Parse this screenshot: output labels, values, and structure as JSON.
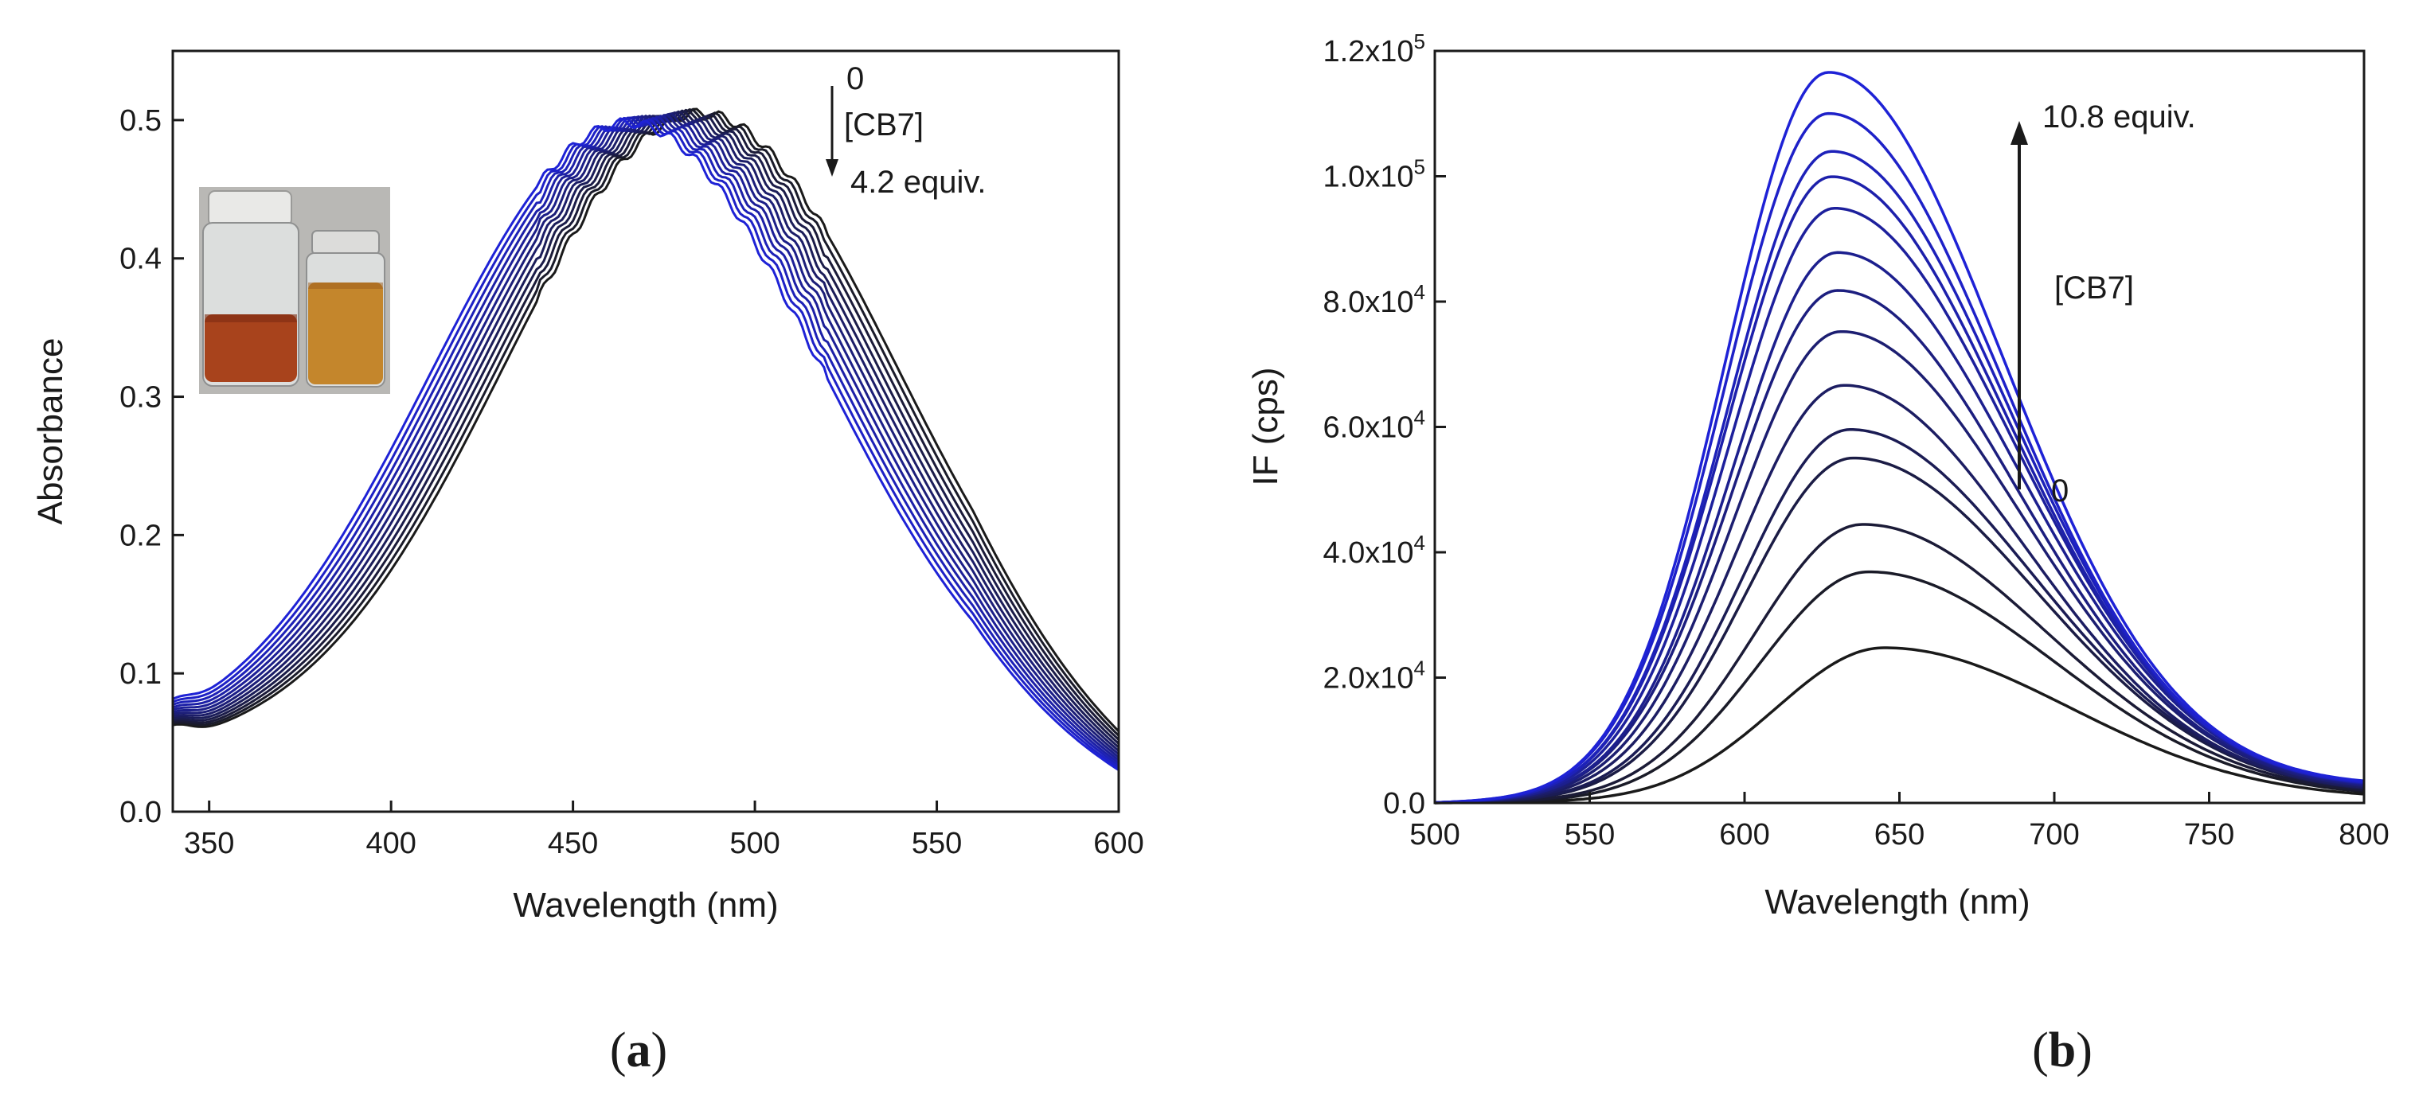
{
  "colors": {
    "start_series": "#1a1a1a",
    "end_series": "#1e22d6",
    "axis": "#1a1a1a",
    "background": "#ffffff"
  },
  "panel_labels": {
    "a": {
      "open": "(",
      "letter": "a",
      "close": ")"
    },
    "b": {
      "open": "(",
      "letter": "b",
      "close": ")"
    }
  },
  "inset_photo": {
    "icon": "vials-photo-icon",
    "colors": {
      "backdrop": "#b9b8b5",
      "left_liquid": "#a8431c",
      "right_liquid": "#c4862c",
      "glass": "#dcdedd"
    }
  },
  "chart_data": [
    {
      "id": "a",
      "type": "line",
      "title": "",
      "xlabel": "Wavelength (nm)",
      "ylabel": "Absorbance",
      "xlim": [
        340,
        600
      ],
      "ylim": [
        0.0,
        0.55
      ],
      "xticks": [
        350,
        400,
        450,
        500,
        550,
        600
      ],
      "yticks": [
        0.0,
        0.1,
        0.2,
        0.3,
        0.4,
        0.5
      ],
      "xtick_labels": [
        "350",
        "400",
        "450",
        "500",
        "550",
        "600"
      ],
      "ytick_labels": [
        "0.0",
        "0.1",
        "0.2",
        "0.3",
        "0.4",
        "0.5"
      ],
      "grid": false,
      "series_count": 13,
      "first_series": {
        "peak_x": 485,
        "peak_y": 0.505,
        "color": "black"
      },
      "last_series": {
        "peak_x": 465,
        "peak_y": 0.498,
        "color": "blue"
      },
      "baseline": {
        "at_340": 0.05,
        "min_x": 350,
        "min_y": 0.04,
        "at_600": 0.01
      },
      "annotations": {
        "start": "0",
        "reagent": "[CB7]",
        "end": "4.2 equiv.",
        "arrow_direction": "down"
      }
    },
    {
      "id": "b",
      "type": "line",
      "title": "",
      "xlabel": "Wavelength (nm)",
      "ylabel": "IF (cps)",
      "xlim": [
        500,
        800
      ],
      "ylim": [
        0,
        120000
      ],
      "xticks": [
        500,
        550,
        600,
        650,
        700,
        750,
        800
      ],
      "yticks": [
        0,
        20000,
        40000,
        60000,
        80000,
        100000,
        120000
      ],
      "xtick_labels": [
        "500",
        "550",
        "600",
        "650",
        "700",
        "750",
        "800"
      ],
      "ytick_labels": [
        {
          "mant": "0.0",
          "exp": ""
        },
        {
          "mant": "2.0x10",
          "exp": "4"
        },
        {
          "mant": "4.0x10",
          "exp": "4"
        },
        {
          "mant": "6.0x10",
          "exp": "4"
        },
        {
          "mant": "8.0x10",
          "exp": "4"
        },
        {
          "mant": "1.0x10",
          "exp": "5"
        },
        {
          "mant": "1.2x10",
          "exp": "5"
        }
      ],
      "grid": false,
      "series": [
        {
          "peak_x": 645,
          "peak_y": 24500
        },
        {
          "peak_x": 640,
          "peak_y": 36500
        },
        {
          "peak_x": 638,
          "peak_y": 44000
        },
        {
          "peak_x": 635,
          "peak_y": 54500
        },
        {
          "peak_x": 634,
          "peak_y": 59000
        },
        {
          "peak_x": 632,
          "peak_y": 66000
        },
        {
          "peak_x": 631,
          "peak_y": 74500
        },
        {
          "peak_x": 630,
          "peak_y": 81000
        },
        {
          "peak_x": 630,
          "peak_y": 87000
        },
        {
          "peak_x": 629,
          "peak_y": 94000
        },
        {
          "peak_x": 628,
          "peak_y": 99000
        },
        {
          "peak_x": 628,
          "peak_y": 103000
        },
        {
          "peak_x": 627,
          "peak_y": 109000
        },
        {
          "peak_x": 627,
          "peak_y": 115500
        }
      ],
      "annotations": {
        "start": "0",
        "reagent": "[CB7]",
        "end": "10.8 equiv.",
        "arrow_direction": "up"
      }
    }
  ]
}
